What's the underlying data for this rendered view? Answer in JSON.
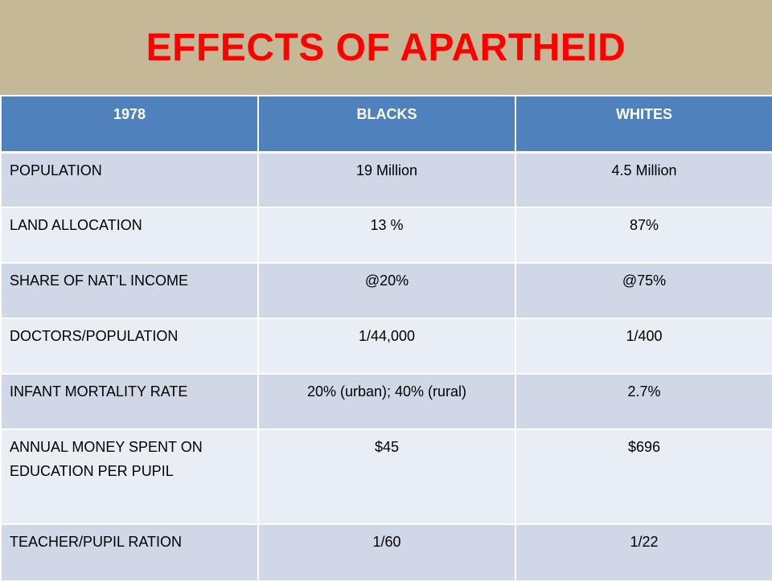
{
  "slide": {
    "title": "EFFECTS OF APARTHEID"
  },
  "table": {
    "headers": [
      "1978",
      "BLACKS",
      "WHITES"
    ],
    "rows": [
      {
        "label": "POPULATION",
        "blacks": "19 Million",
        "whites": "4.5 Million"
      },
      {
        "label": "LAND ALLOCATION",
        "blacks": "13 %",
        "whites": "87%"
      },
      {
        "label": "SHARE OF NAT’L INCOME",
        "blacks": "@20%",
        "whites": "@75%"
      },
      {
        "label": "DOCTORS/POPULATION",
        "blacks": "1/44,000",
        "whites": "1/400"
      },
      {
        "label": "INFANT MORTALITY RATE",
        "blacks": "20% (urban); 40% (rural)",
        "whites": "2.7%"
      },
      {
        "label": "ANNUAL MONEY SPENT ON EDUCATION PER PUPIL",
        "blacks": "$45",
        "whites": "$696"
      },
      {
        "label": "TEACHER/PUPIL RATION",
        "blacks": "1/60",
        "whites": "1/22"
      }
    ]
  },
  "colors": {
    "title_band": "#c4b896",
    "title_text": "#ff0000",
    "header_bg": "#4f81bd",
    "row_dark": "#d0d8e8",
    "row_light": "#e9edf4"
  }
}
